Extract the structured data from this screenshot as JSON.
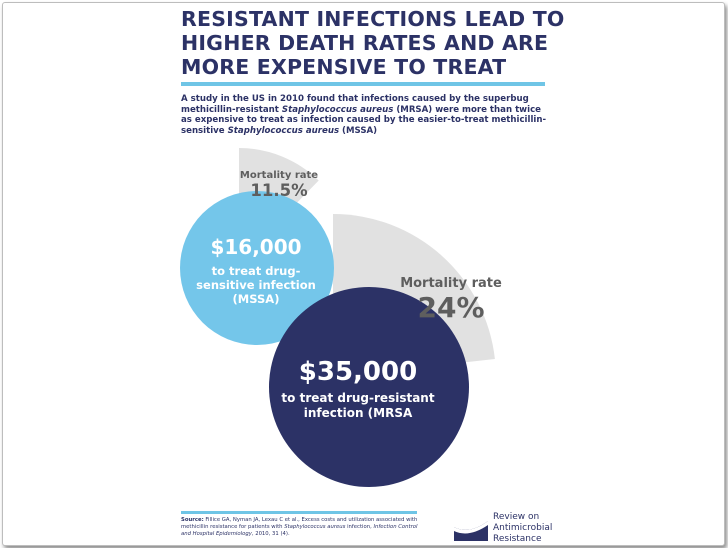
{
  "title": {
    "line1": "RESISTANT INFECTIONS LEAD TO",
    "line2": "HIGHER DEATH RATES AND ARE",
    "line3": "MORE EXPENSIVE TO TREAT"
  },
  "subtitle": {
    "part1": "A study in the US in 2010 found that infections caused by the superbug methicillin-resistant ",
    "italic1": "Staphylococcus aureus",
    "part2": " (MRSA) were more than twice as expensive to treat as infection caused by the easier-to-treat methicillin-sensitive ",
    "italic2": "Staphylococcus aureus",
    "part3": " (MSSA)"
  },
  "mssa": {
    "mortality_label": "Mortality rate",
    "mortality_value": "11.5%",
    "mortality_fraction": 0.115,
    "cost": "$16,000",
    "desc_line1": "to treat drug-",
    "desc_line2": "sensitive infection",
    "desc_line3": "(MSSA)",
    "color": "#74c6ea"
  },
  "mrsa": {
    "mortality_label": "Mortality rate",
    "mortality_value": "24%",
    "mortality_fraction": 0.24,
    "cost": "$35,000",
    "desc_line1": "to treat drug-resistant",
    "desc_line2": "infection (MRSA",
    "color": "#2c3266"
  },
  "wedge_color": "#e1e1e1",
  "accent_color": "#6fc5e6",
  "source": {
    "label": "Source:",
    "text1": " Fillice GA, Nyman JA, Lexau C et al., Excess costs and utilization associated with methicillin resistance for patients with ",
    "italic1": "Staphylococcus aureus",
    "text2": " infection, ",
    "italic2": "Infection Control and Hospital Epidemiology",
    "text3": ", 2010, 31 (4)."
  },
  "logo": {
    "line1": "Review on",
    "line2": "Antimicrobial",
    "line3": "Resistance"
  }
}
